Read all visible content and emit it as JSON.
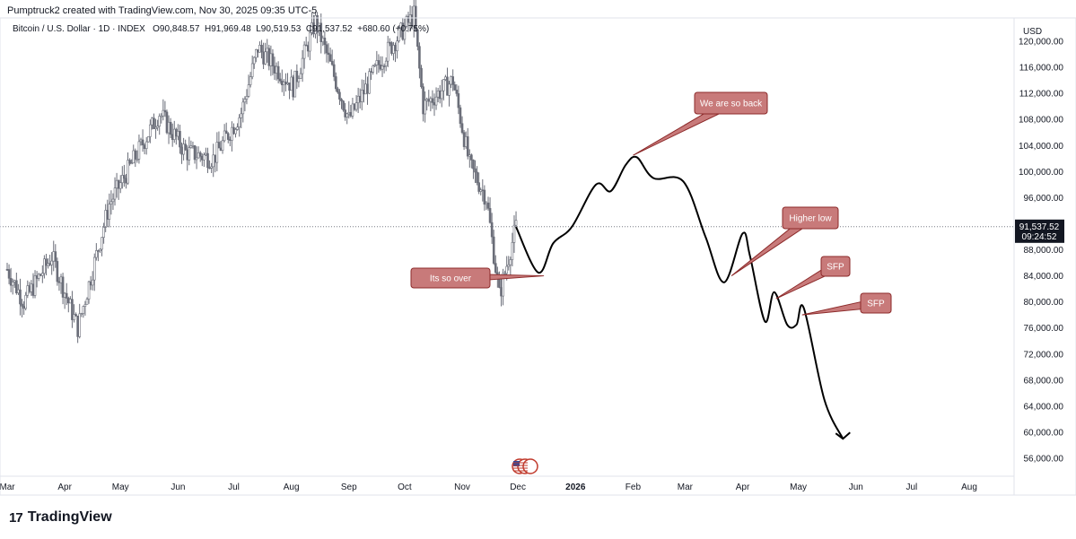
{
  "header": {
    "title": "Pumptruck2 created with TradingView.com, Nov 30, 2025 09:35 UTC-5"
  },
  "info": {
    "symbol": "Bitcoin / U.S. Dollar · 1D · INDEX",
    "ohlc": "O90,848.57  H91,969.48  L90,519.53  C91,537.52  +680.60 (+0.75%)"
  },
  "footer": {
    "brand": "TradingView",
    "logo_mark": "17"
  },
  "chart_data": {
    "type": "candlestick",
    "currency": "USD",
    "y_ticks": [
      56000,
      60000,
      64000,
      68000,
      72000,
      76000,
      80000,
      84000,
      88000,
      96000,
      100000,
      104000,
      108000,
      112000,
      116000,
      120000
    ],
    "y_tick_labels": [
      "56,000.00",
      "60,000.00",
      "64,000.00",
      "68,000.00",
      "72,000.00",
      "76,000.00",
      "80,000.00",
      "84,000.00",
      "88,000.00",
      "96,000.00",
      "100,000.00",
      "104,000.00",
      "108,000.00",
      "112,000.00",
      "116,000.00",
      "120,000.00"
    ],
    "ylim": [
      53000,
      122000
    ],
    "x_ticks": [
      "Mar",
      "Apr",
      "May",
      "Jun",
      "Jul",
      "Aug",
      "Sep",
      "Oct",
      "Nov",
      "Dec",
      "2026",
      "Feb",
      "Mar",
      "Apr",
      "May",
      "Jun",
      "Jul",
      "Aug"
    ],
    "last_price": {
      "value": 91537.52,
      "label": "91,537.52",
      "countdown": "09:24:52"
    },
    "candle_keypoints": [
      {
        "x": "2025-03-01",
        "y": 85000
      },
      {
        "x": "2025-03-10",
        "y": 80000
      },
      {
        "x": "2025-03-25",
        "y": 87000
      },
      {
        "x": "2025-04-08",
        "y": 76000
      },
      {
        "x": "2025-04-25",
        "y": 95000
      },
      {
        "x": "2025-05-22",
        "y": 109000
      },
      {
        "x": "2025-06-05",
        "y": 103000
      },
      {
        "x": "2025-06-20",
        "y": 102000
      },
      {
        "x": "2025-07-05",
        "y": 109000
      },
      {
        "x": "2025-07-14",
        "y": 119000
      },
      {
        "x": "2025-08-02",
        "y": 113000
      },
      {
        "x": "2025-08-14",
        "y": 123000
      },
      {
        "x": "2025-09-01",
        "y": 108000
      },
      {
        "x": "2025-09-18",
        "y": 117000
      },
      {
        "x": "2025-10-06",
        "y": 124000
      },
      {
        "x": "2025-10-11",
        "y": 110000
      },
      {
        "x": "2025-10-27",
        "y": 114000
      },
      {
        "x": "2025-11-05",
        "y": 101000
      },
      {
        "x": "2025-11-14",
        "y": 96000
      },
      {
        "x": "2025-11-21",
        "y": 81000
      },
      {
        "x": "2025-11-30",
        "y": 91537
      }
    ],
    "projection_path": [
      {
        "x": "2025-11-30",
        "y": 91500
      },
      {
        "x": "2025-12-12",
        "y": 84500
      },
      {
        "x": "2025-12-20",
        "y": 89000
      },
      {
        "x": "2025-12-30",
        "y": 91500
      },
      {
        "x": "2026-01-12",
        "y": 98000
      },
      {
        "x": "2026-01-20",
        "y": 97000
      },
      {
        "x": "2026-01-28",
        "y": 101000
      },
      {
        "x": "2026-02-03",
        "y": 102200
      },
      {
        "x": "2026-02-12",
        "y": 99000
      },
      {
        "x": "2026-02-28",
        "y": 98500
      },
      {
        "x": "2026-03-12",
        "y": 90000
      },
      {
        "x": "2026-03-22",
        "y": 83000
      },
      {
        "x": "2026-04-01",
        "y": 90500
      },
      {
        "x": "2026-04-05",
        "y": 87000
      },
      {
        "x": "2026-04-13",
        "y": 77000
      },
      {
        "x": "2026-04-18",
        "y": 81500
      },
      {
        "x": "2026-04-25",
        "y": 76500
      },
      {
        "x": "2026-04-30",
        "y": 76500
      },
      {
        "x": "2026-05-04",
        "y": 79000
      },
      {
        "x": "2026-05-15",
        "y": 65000
      },
      {
        "x": "2026-05-25",
        "y": 59000
      }
    ],
    "annotations": [
      {
        "text": "Its so over",
        "target": {
          "x": "2025-12-15",
          "y": 84000
        }
      },
      {
        "text": "We are so back",
        "target": {
          "x": "2026-02-01",
          "y": 102500
        }
      },
      {
        "text": "Higher low",
        "target": {
          "x": "2026-03-26",
          "y": 84000
        }
      },
      {
        "text": "SFP",
        "target": {
          "x": "2026-04-19",
          "y": 80500
        }
      },
      {
        "text": "SFP",
        "target": {
          "x": "2026-05-03",
          "y": 78000
        }
      }
    ],
    "colors": {
      "candle": "#6a6d78",
      "projection": "#000000",
      "annotation_fill": "#c87a7a",
      "annotation_text": "#ffffff",
      "annotation_border": "#8c2a2a"
    },
    "legend": "none",
    "grid": false
  }
}
